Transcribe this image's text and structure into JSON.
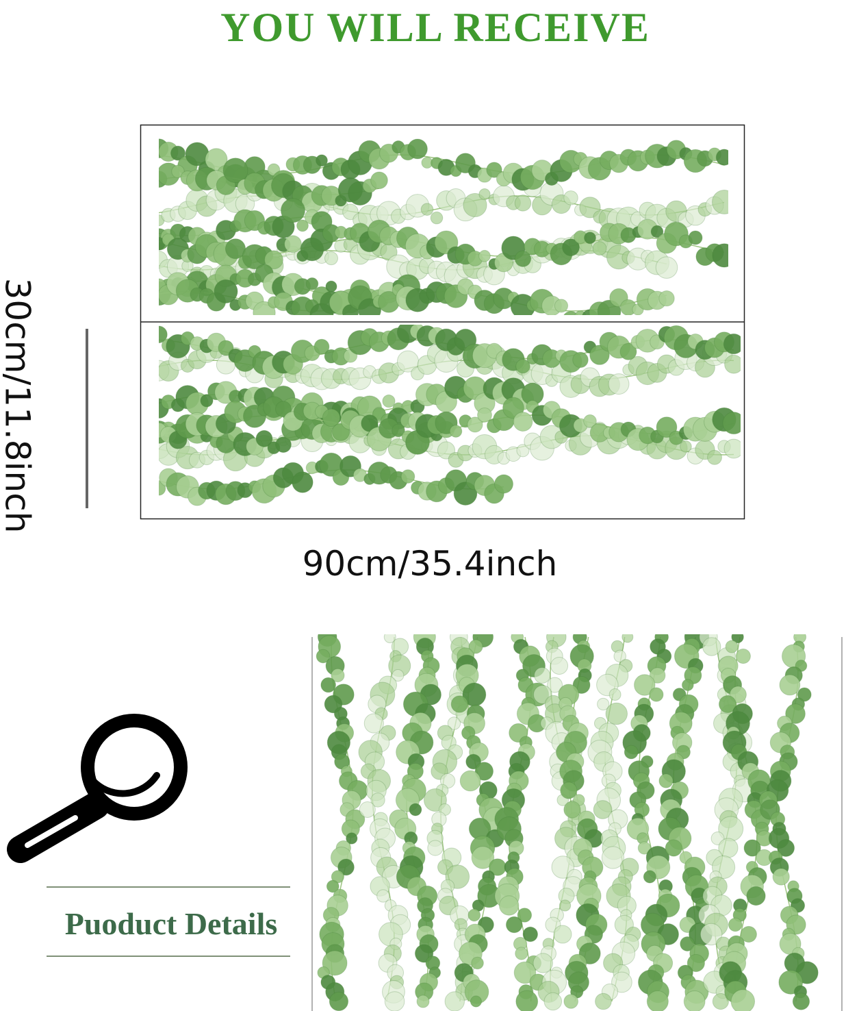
{
  "header": {
    "title": "YOU WILL RECEIVE"
  },
  "dimensions": {
    "height": "30cm/11.8inch",
    "width": "90cm/35.4inch"
  },
  "details": {
    "heading": "Puoduct Details"
  }
}
